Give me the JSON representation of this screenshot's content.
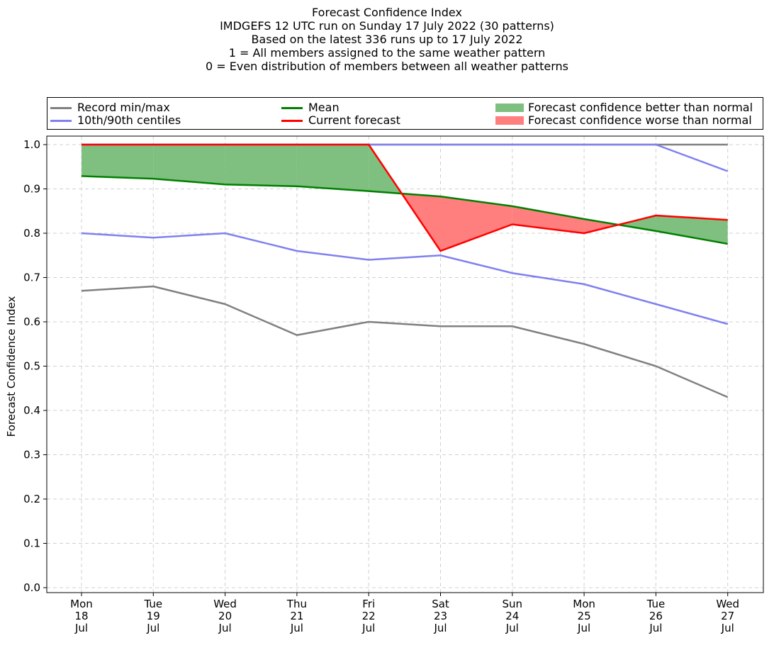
{
  "title_lines": [
    "Forecast Confidence Index",
    "IMDGEFS 12 UTC run on Sunday 17 July 2022 (30 patterns)",
    "Based on the latest 336 runs up to 17 July 2022",
    "1 = All members assigned to the same weather pattern",
    "0 = Even distribution of members between all weather patterns"
  ],
  "legend": {
    "record": "Record min/max",
    "centiles": "10th/90th centiles",
    "mean": "Mean",
    "current": "Current forecast",
    "better": "Forecast confidence better than normal",
    "worse": "Forecast confidence worse than normal"
  },
  "colors": {
    "record": "#808080",
    "centile": "#8080f0",
    "mean": "#008000",
    "current": "#ff0000",
    "better": "#7fbf7f",
    "worse": "#ff7f7f",
    "overlap": "#4040b0",
    "grid": "#d0d0d0"
  },
  "chart_data": {
    "type": "line",
    "title": "Forecast Confidence Index",
    "ylabel": "Forecast Confidence Index",
    "xlabel": "",
    "ylim": [
      0.0,
      1.0
    ],
    "yticks": [
      "0.0",
      "0.1",
      "0.2",
      "0.3",
      "0.4",
      "0.5",
      "0.6",
      "0.7",
      "0.8",
      "0.9",
      "1.0"
    ],
    "categories": [
      [
        "Mon",
        "18",
        "Jul"
      ],
      [
        "Tue",
        "19",
        "Jul"
      ],
      [
        "Wed",
        "20",
        "Jul"
      ],
      [
        "Thu",
        "21",
        "Jul"
      ],
      [
        "Fri",
        "22",
        "Jul"
      ],
      [
        "Sat",
        "23",
        "Jul"
      ],
      [
        "Sun",
        "24",
        "Jul"
      ],
      [
        "Mon",
        "25",
        "Jul"
      ],
      [
        "Tue",
        "26",
        "Jul"
      ],
      [
        "Wed",
        "27",
        "Jul"
      ]
    ],
    "grid": true,
    "legend_position": "top",
    "series": [
      {
        "name": "Record min/max",
        "key": "record_max",
        "values": [
          1.0,
          1.0,
          1.0,
          1.0,
          1.0,
          1.0,
          1.0,
          1.0,
          1.0,
          1.0
        ]
      },
      {
        "name": "Record min/max",
        "key": "record_min",
        "values": [
          0.67,
          0.68,
          0.64,
          0.57,
          0.6,
          0.59,
          0.59,
          0.55,
          0.5,
          0.43
        ]
      },
      {
        "name": "10th/90th centiles",
        "key": "p90",
        "values": [
          1.0,
          1.0,
          1.0,
          1.0,
          1.0,
          1.0,
          1.0,
          1.0,
          1.0,
          0.94
        ]
      },
      {
        "name": "10th/90th centiles",
        "key": "p10",
        "values": [
          0.8,
          0.79,
          0.8,
          0.76,
          0.74,
          0.75,
          0.71,
          0.685,
          0.64,
          0.595
        ]
      },
      {
        "name": "Mean",
        "key": "mean",
        "values": [
          0.929,
          0.923,
          0.91,
          0.906,
          0.895,
          0.883,
          0.861,
          0.832,
          0.805,
          0.776
        ]
      },
      {
        "name": "Current forecast",
        "key": "current",
        "values": [
          1.0,
          1.0,
          1.0,
          1.0,
          1.0,
          0.76,
          0.82,
          0.8,
          0.84,
          0.83
        ]
      }
    ]
  }
}
